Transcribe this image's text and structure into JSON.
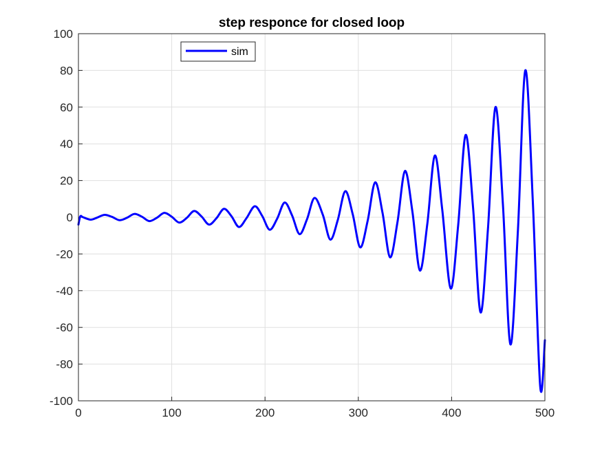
{
  "chart_data": {
    "type": "line",
    "title": "step responce for closed loop",
    "xlabel": "",
    "ylabel": "",
    "xlim": [
      0,
      500
    ],
    "ylim": [
      -100,
      100
    ],
    "xticks": [
      "0",
      "100",
      "200",
      "300",
      "400",
      "500"
    ],
    "yticks": [
      "100",
      "80",
      "60",
      "40",
      "20",
      "0",
      "-20",
      "-40",
      "-60",
      "-80",
      "-100"
    ],
    "grid": true,
    "legend_position": "top-left",
    "series": [
      {
        "name": "sim",
        "color": "#0000ff",
        "x": [
          0,
          2,
          5,
          13,
          20,
          28,
          36,
          44,
          52,
          60,
          68,
          76,
          84,
          92,
          100,
          108,
          116,
          124,
          132,
          140,
          148,
          156,
          164,
          172,
          180,
          189,
          197,
          205,
          213,
          221,
          229,
          237,
          245,
          253,
          262,
          270,
          278,
          286,
          294,
          302,
          310,
          318,
          326,
          334,
          342,
          350,
          358,
          366,
          374,
          382,
          390,
          399,
          407,
          415,
          423,
          431,
          439,
          447,
          455,
          463,
          471,
          479,
          487,
          495,
          500
        ],
        "y": [
          -4,
          0.5,
          0,
          -1.3,
          -0.2,
          1.3,
          0.2,
          -1.6,
          -0.3,
          1.8,
          0.3,
          -2.1,
          -0.3,
          2.4,
          0.3,
          -2.9,
          -0.4,
          3.4,
          0.4,
          -4,
          -0.5,
          4.6,
          0.6,
          -5.3,
          -0.6,
          6,
          0.7,
          -6.8,
          -0.8,
          8,
          1.0,
          -9.2,
          -1.1,
          10.5,
          1.3,
          -12.2,
          -1.5,
          14.2,
          1.7,
          -16.4,
          -2.0,
          19,
          2.3,
          -21.8,
          -2.6,
          25.2,
          3.0,
          -29,
          -3.5,
          33.6,
          4.0,
          -38.8,
          -4.6,
          44.8,
          5.3,
          -51.8,
          -6.1,
          60,
          7.0,
          -69.2,
          -8.0,
          80,
          9.2,
          -92.3,
          -67
        ]
      }
    ]
  }
}
